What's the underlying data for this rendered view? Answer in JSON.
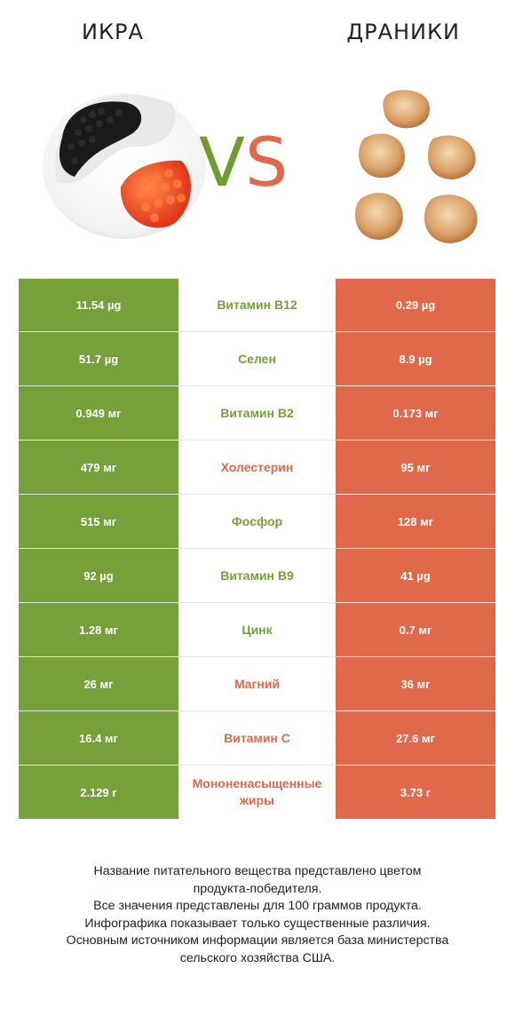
{
  "header": {
    "left_title": "ИКРА",
    "right_title": "ДРАНИКИ",
    "vs_v": "V",
    "vs_s": "S"
  },
  "colors": {
    "left_winner": "#76a03a",
    "right_winner": "#e0694b"
  },
  "comparison": [
    {
      "left": "11.54 µg",
      "nutrient": "Витамин B12",
      "right": "0.29 µg",
      "winner": "left"
    },
    {
      "left": "51.7 µg",
      "nutrient": "Селен",
      "right": "8.9 µg",
      "winner": "left"
    },
    {
      "left": "0.949 мг",
      "nutrient": "Витамин B2",
      "right": "0.173 мг",
      "winner": "left"
    },
    {
      "left": "479 мг",
      "nutrient": "Холестерин",
      "right": "95 мг",
      "winner": "right"
    },
    {
      "left": "515 мг",
      "nutrient": "Фосфор",
      "right": "128 мг",
      "winner": "left"
    },
    {
      "left": "92 µg",
      "nutrient": "Витамин B9",
      "right": "41 µg",
      "winner": "left"
    },
    {
      "left": "1.28 мг",
      "nutrient": "Цинк",
      "right": "0.7 мг",
      "winner": "left"
    },
    {
      "left": "26 мг",
      "nutrient": "Магний",
      "right": "36 мг",
      "winner": "right"
    },
    {
      "left": "16.4 мг",
      "nutrient": "Витамин C",
      "right": "27.6 мг",
      "winner": "right"
    },
    {
      "left": "2.129 г",
      "nutrient": "Мононенасыщенные жиры",
      "right": "3.73 г",
      "winner": "right"
    }
  ],
  "footer": {
    "lines": [
      "Название питательного вещества представлено цветом",
      "продукта-победителя.",
      "Все значения представлены для 100 граммов продукта.",
      "Инфографика показывает только существенные различия.",
      "Основным источником информации является база министерства",
      "сельского хозяйства США."
    ]
  }
}
